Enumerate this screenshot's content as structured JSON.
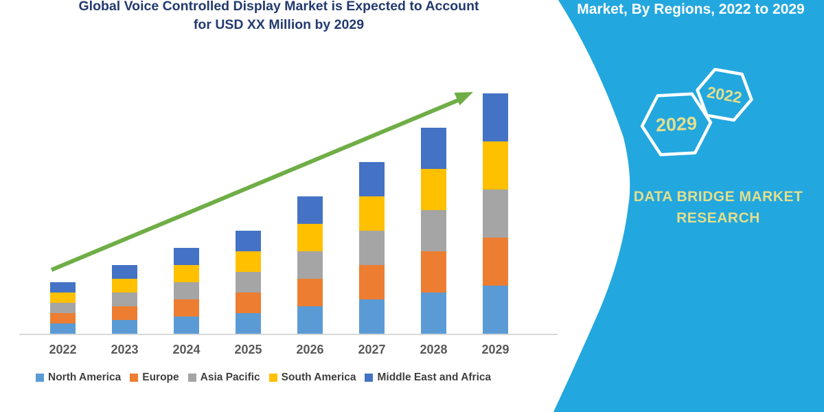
{
  "title": {
    "line1": "Global Voice Controlled Display Market is Expected to Account",
    "line2": "for USD XX Million by 2029"
  },
  "side_panel": {
    "heading": "Market, By Regions, 2022 to 2029",
    "hexagons": [
      {
        "label": "2029"
      },
      {
        "label": "2022"
      }
    ],
    "brand_line1": "DATA BRIDGE MARKET",
    "brand_line2": "RESEARCH",
    "panel_color": "#23A7DF",
    "accent_text_color": "#E2DF8D"
  },
  "chart_data": {
    "type": "bar",
    "stacked": true,
    "title": "Global Voice Controlled Display Market is Expected to Account for USD XX Million by 2029",
    "categories": [
      "2022",
      "2023",
      "2024",
      "2025",
      "2026",
      "2027",
      "2028",
      "2029"
    ],
    "series": [
      {
        "name": "North America",
        "color": "#5B9BD5",
        "values": [
          3,
          4,
          5,
          6,
          8,
          10,
          12,
          14
        ]
      },
      {
        "name": "Europe",
        "color": "#ED7D31",
        "values": [
          3,
          4,
          5,
          6,
          8,
          10,
          12,
          14
        ]
      },
      {
        "name": "Asia Pacific",
        "color": "#A5A5A5",
        "values": [
          3,
          4,
          5,
          6,
          8,
          10,
          12,
          14
        ]
      },
      {
        "name": "South America",
        "color": "#FFC000",
        "values": [
          3,
          4,
          5,
          6,
          8,
          10,
          12,
          14
        ]
      },
      {
        "name": "Middle East and Africa",
        "color": "#4472C4",
        "values": [
          3,
          4,
          5,
          6,
          8,
          10,
          12,
          14
        ]
      }
    ],
    "totals": [
      15,
      20,
      25,
      30,
      40,
      50,
      60,
      70
    ],
    "xlabel": "",
    "ylabel": "",
    "y_axis_visible": false,
    "grid": false,
    "legend_position": "bottom",
    "trend_arrow": true,
    "trend_arrow_color": "#6FAE46"
  }
}
